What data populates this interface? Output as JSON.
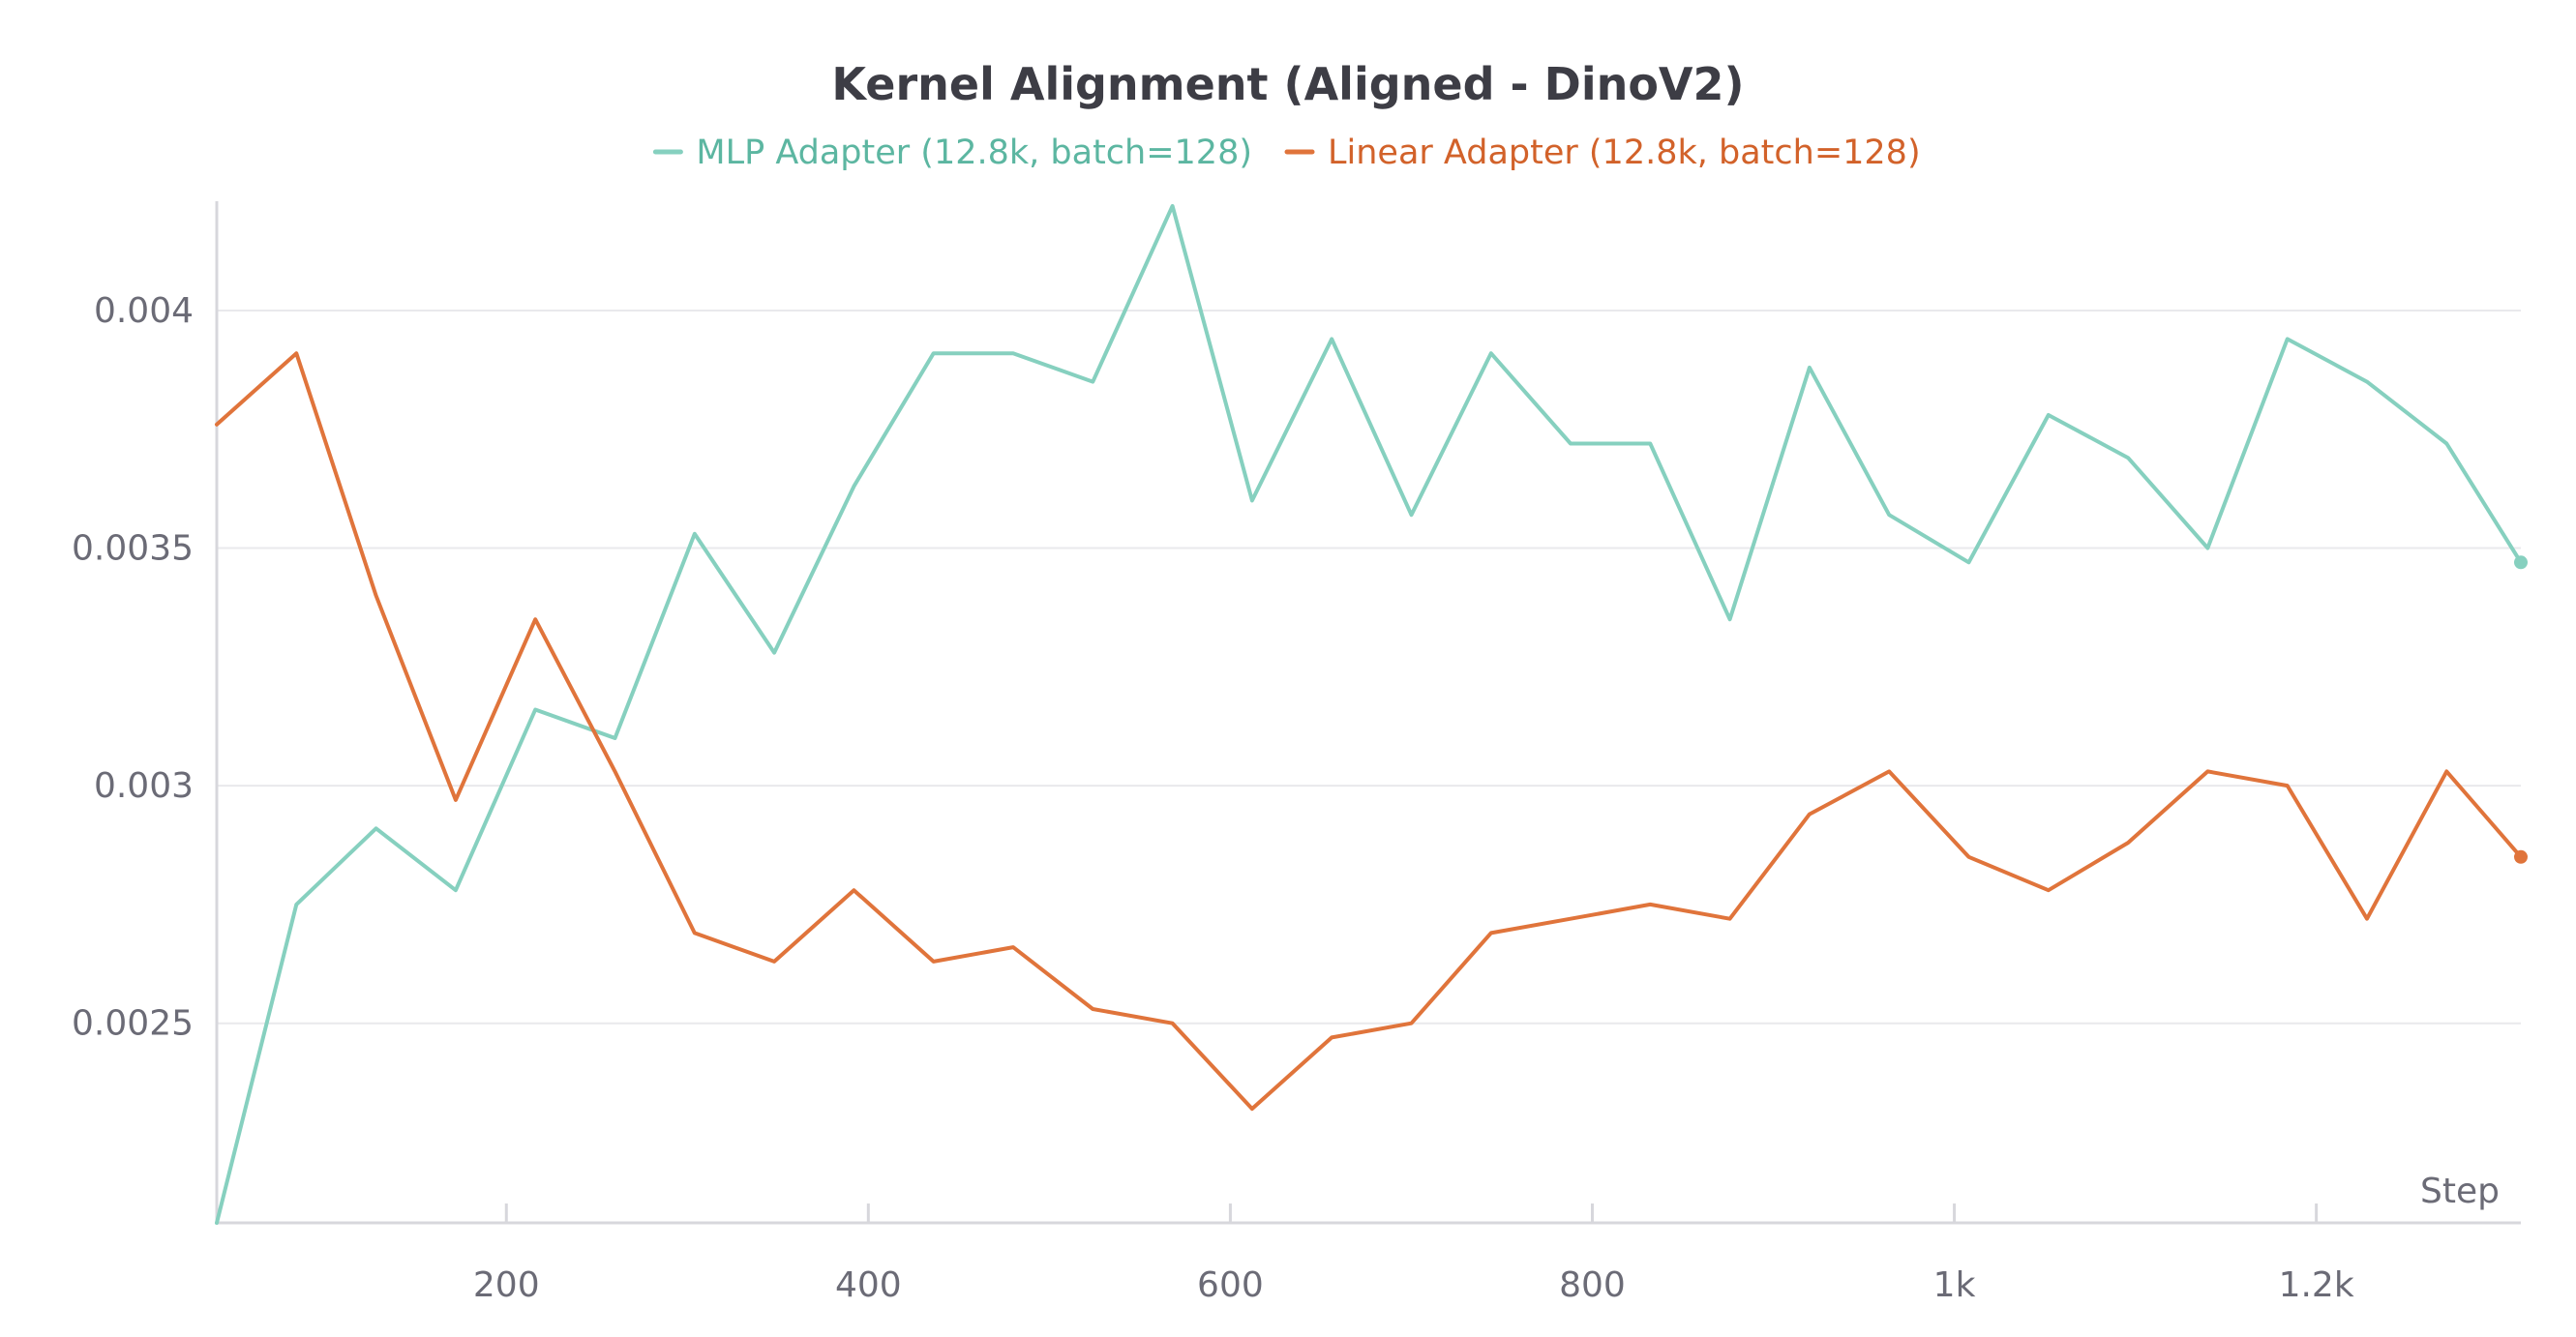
{
  "chart_data": {
    "type": "line",
    "title": "Kernel Alignment (Aligned - DinoV2)",
    "xlabel": "Step",
    "ylabel": "",
    "xlim": [
      40,
      1313
    ],
    "ylim": [
      0.00208,
      0.00423
    ],
    "x_ticks": [
      200,
      400,
      600,
      800,
      1000,
      1200
    ],
    "x_tick_labels": [
      "200",
      "400",
      "600",
      "800",
      "1k",
      "1.2k"
    ],
    "y_ticks": [
      0.0025,
      0.003,
      0.0035,
      0.004
    ],
    "y_tick_labels": [
      "0.0025",
      "0.003",
      "0.0035",
      "0.004"
    ],
    "grid": true,
    "legend_position": "top-center",
    "x": [
      40,
      84,
      128,
      172,
      216,
      260,
      304,
      348,
      392,
      436,
      480,
      524,
      568,
      612,
      656,
      700,
      744,
      788,
      832,
      876,
      920,
      964,
      1008,
      1052,
      1096,
      1140,
      1184,
      1228,
      1272,
      1313
    ],
    "series": [
      {
        "name": "MLP Adapter (12.8k, batch=128)",
        "color": "#86d0bf",
        "text_color": "#5cb6a1",
        "values": [
          0.00208,
          0.00275,
          0.00291,
          0.00278,
          0.00316,
          0.0031,
          0.00353,
          0.00328,
          0.00363,
          0.00391,
          0.00391,
          0.00385,
          0.00422,
          0.0036,
          0.00394,
          0.00357,
          0.00391,
          0.00372,
          0.00372,
          0.00335,
          0.00388,
          0.00357,
          0.00347,
          0.00378,
          0.00369,
          0.0035,
          0.00394,
          0.00385,
          0.00372,
          0.00347
        ]
      },
      {
        "name": "Linear Adapter (12.8k, batch=128)",
        "color": "#e0743b",
        "text_color": "#d2622a",
        "values": [
          0.00376,
          0.00391,
          0.0034,
          0.00297,
          0.00335,
          0.00303,
          0.00269,
          0.00263,
          0.00278,
          0.00263,
          0.00266,
          0.00253,
          0.0025,
          0.00232,
          0.00247,
          0.0025,
          0.00269,
          0.00272,
          0.00275,
          0.00272,
          0.00294,
          0.00303,
          0.00285,
          0.00278,
          0.00288,
          0.00303,
          0.003,
          0.00272,
          0.00303,
          0.00285
        ]
      }
    ]
  }
}
